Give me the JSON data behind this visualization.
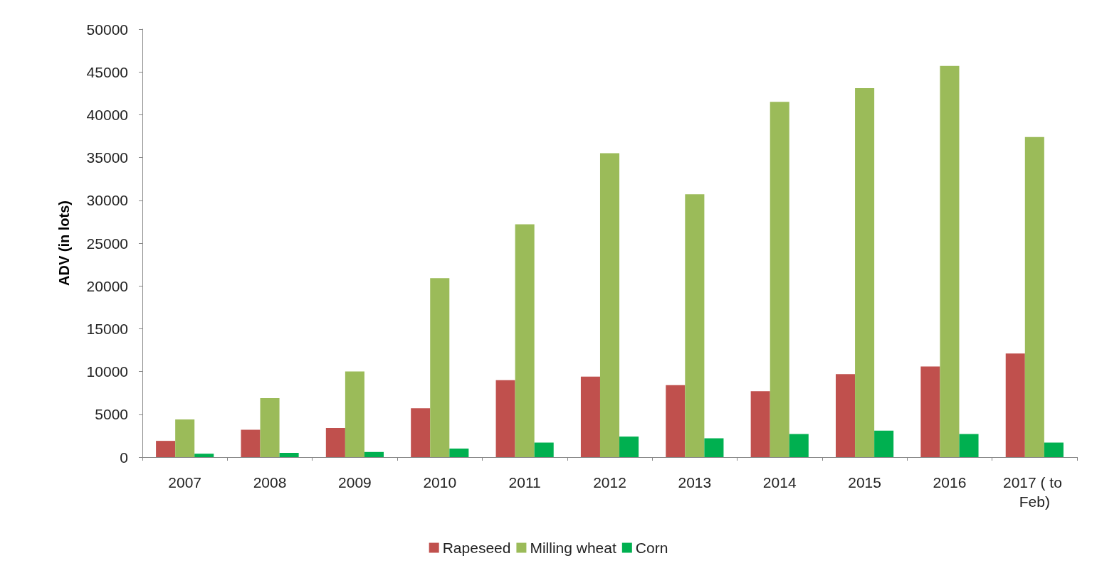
{
  "chart_data": {
    "type": "bar",
    "ylabel": "ADV (in lots)",
    "categories": [
      "2007",
      "2008",
      "2009",
      "2010",
      "2011",
      "2012",
      "2013",
      "2014",
      "2015",
      "2016",
      "2017 ( to Feb)"
    ],
    "series": [
      {
        "name": "Rapeseed",
        "color": "#c0504d",
        "values": [
          1900,
          3200,
          3400,
          5700,
          9000,
          9400,
          8400,
          7700,
          9700,
          10600,
          12100
        ]
      },
      {
        "name": "Milling wheat",
        "color": "#9bbb59",
        "values": [
          4400,
          6900,
          10000,
          20900,
          27200,
          35500,
          30700,
          41500,
          43100,
          45700,
          37400
        ]
      },
      {
        "name": "Corn",
        "color": "#00b050",
        "values": [
          400,
          500,
          600,
          1000,
          1700,
          2400,
          2200,
          2700,
          3100,
          2700,
          1700
        ]
      }
    ],
    "ylim": [
      0,
      50000
    ],
    "yticks": [
      0,
      5000,
      10000,
      15000,
      20000,
      25000,
      30000,
      35000,
      40000,
      45000,
      50000
    ],
    "grid": false,
    "legend": "bottom"
  }
}
